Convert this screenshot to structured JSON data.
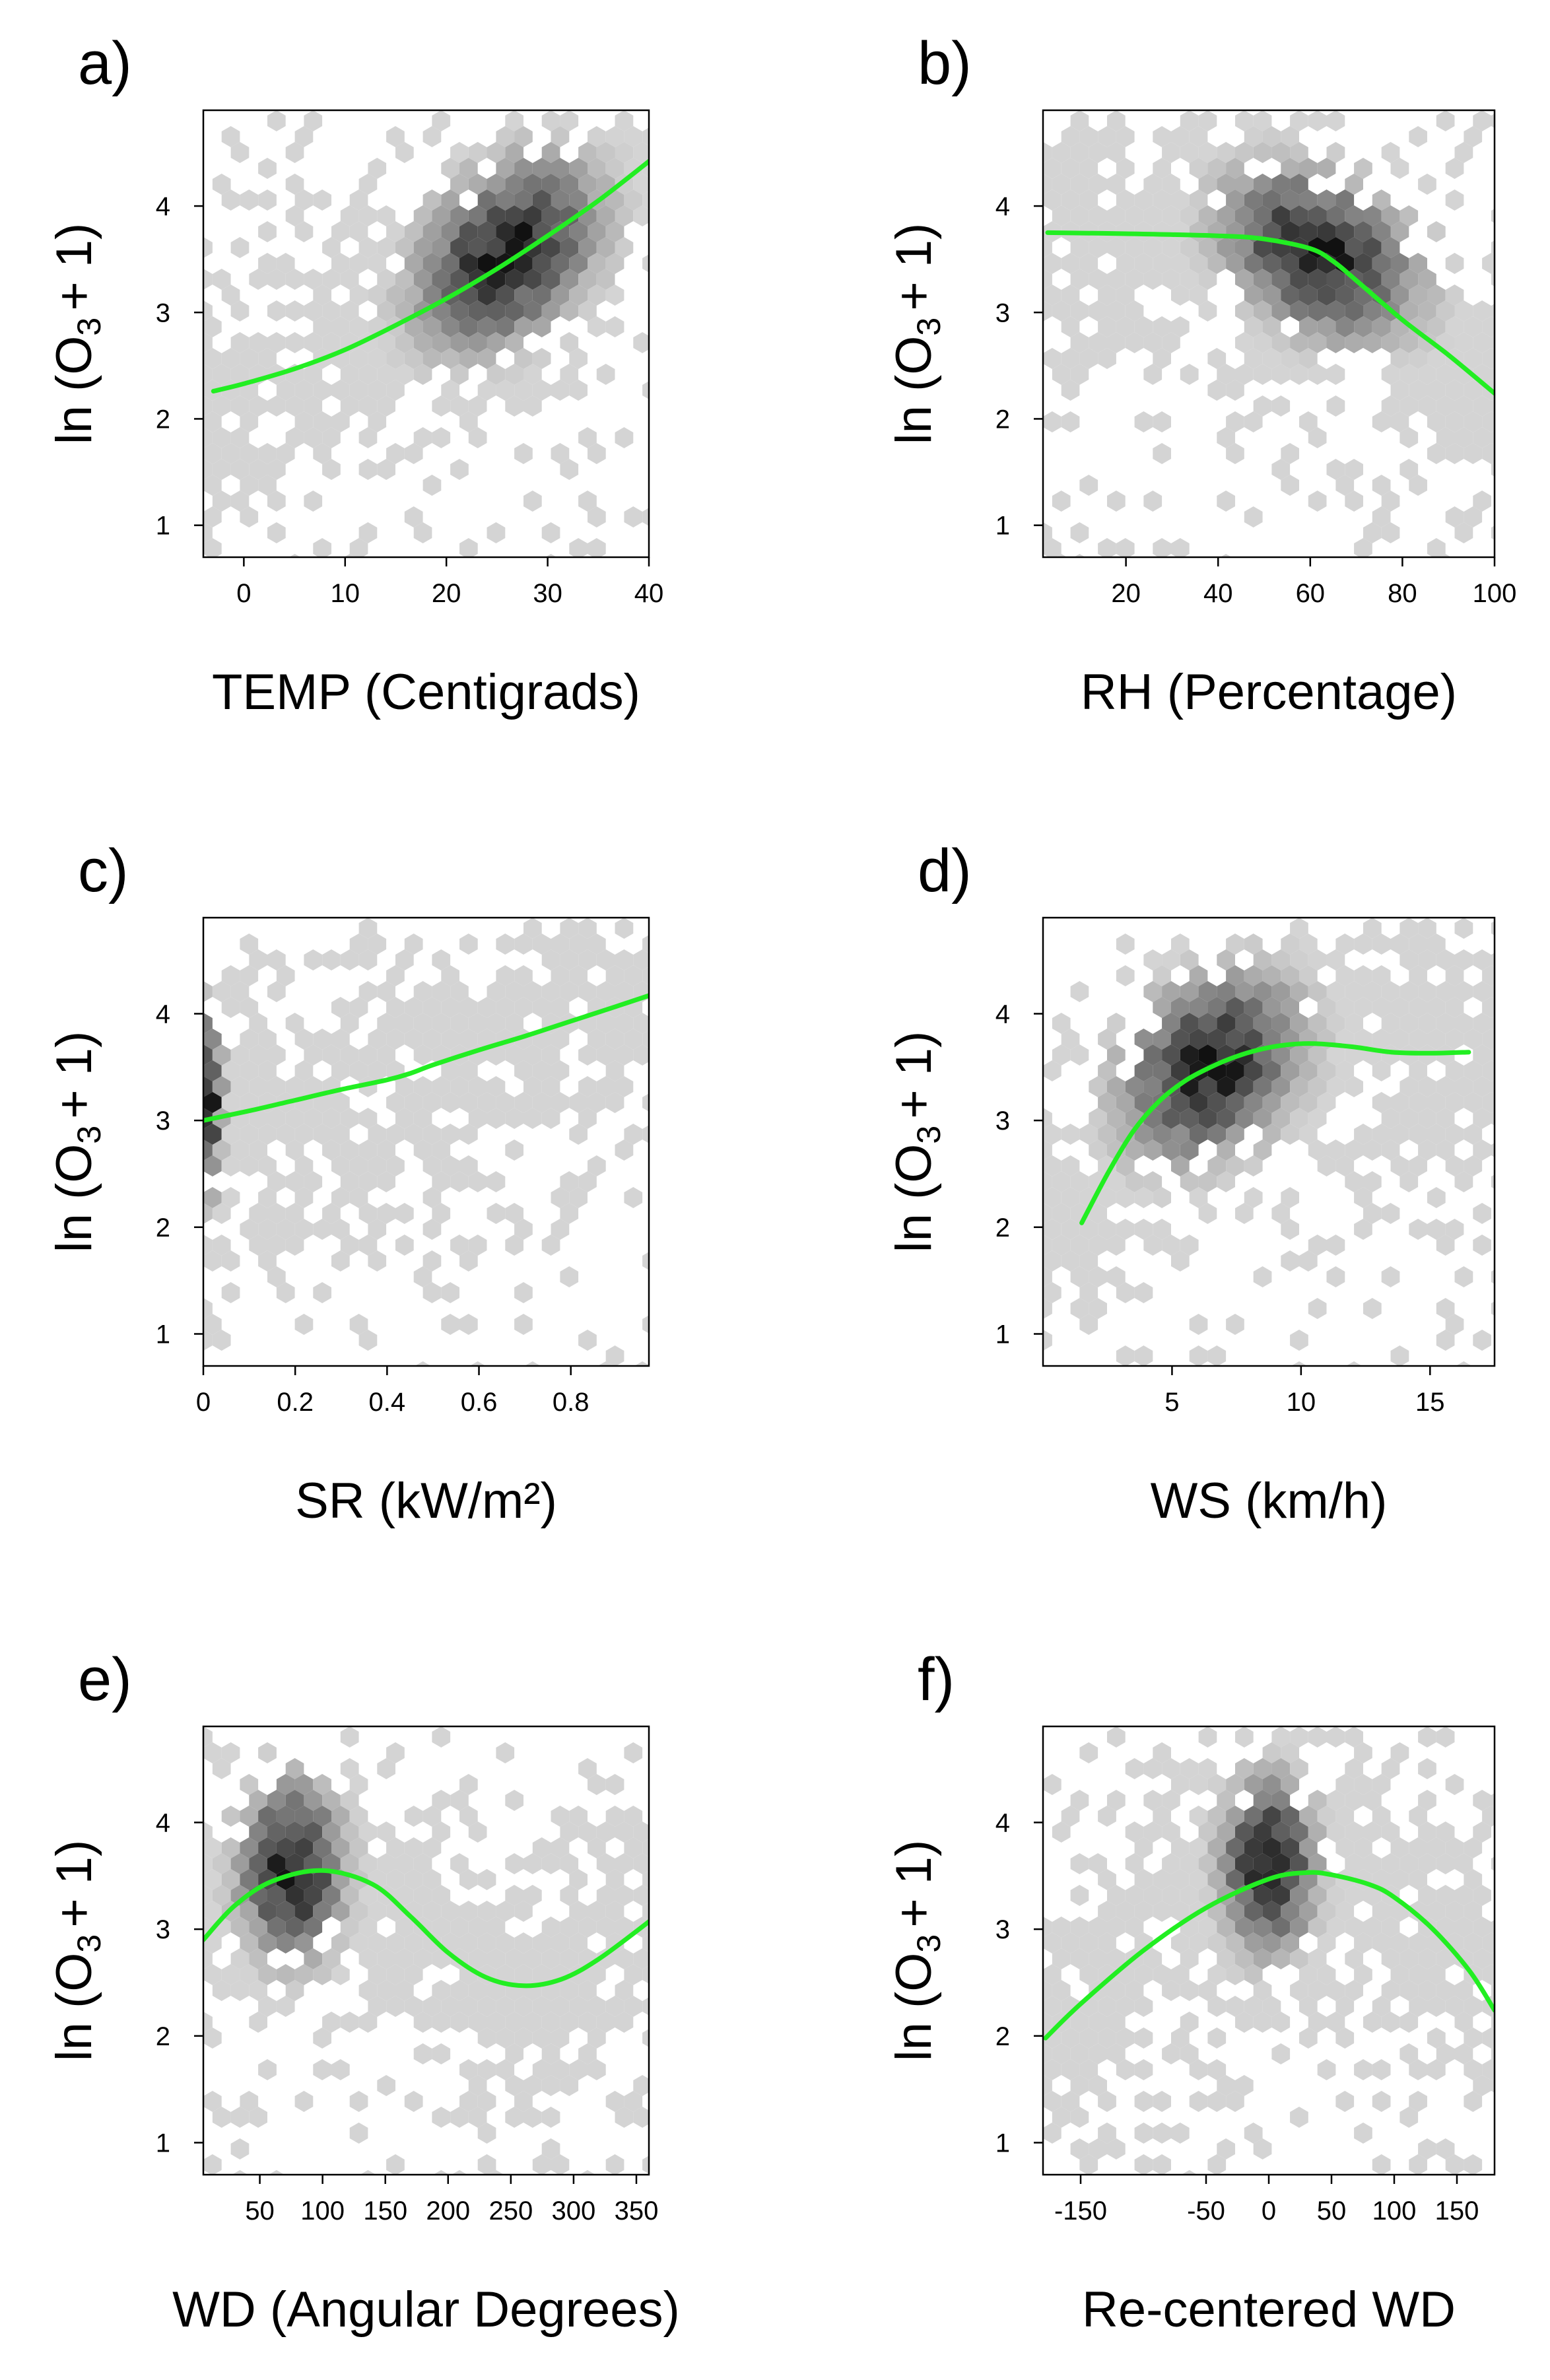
{
  "figure": {
    "ylabel": {
      "prefix": "ln",
      "var": "O",
      "subscript": "3",
      "suffix": "+ 1"
    }
  },
  "colors": {
    "fit_line": "#22ee22",
    "density_low": "#d4d4d4",
    "density_high": "#111111",
    "axis": "#000000",
    "background": "#ffffff"
  },
  "chart_data": [
    {
      "panel": "a)",
      "type": "heatmap",
      "subtype": "hexbin-with-smooth-fit",
      "xlabel": "TEMP (Centigrads)",
      "xlim": [
        -4,
        40
      ],
      "ylim": [
        0.7,
        4.9
      ],
      "xticks": [
        0,
        10,
        20,
        30,
        40
      ],
      "xtick_labels": [
        "0",
        "10",
        "20",
        "30",
        "40"
      ],
      "yticks": [
        1,
        2,
        3,
        4
      ],
      "ytick_labels": [
        "1",
        "2",
        "3",
        "4"
      ],
      "density_cluster": {
        "x_center": 26,
        "y_center": 3.55,
        "x_spread": 6,
        "y_spread": 0.55,
        "tilt": 0.4
      },
      "smooth_fit": {
        "x": [
          -3,
          0,
          5,
          10,
          15,
          20,
          25,
          30,
          35,
          40
        ],
        "y": [
          2.26,
          2.33,
          2.47,
          2.65,
          2.88,
          3.13,
          3.41,
          3.72,
          4.05,
          4.42
        ]
      }
    },
    {
      "panel": "b)",
      "type": "heatmap",
      "subtype": "hexbin-with-smooth-fit",
      "xlabel": "RH (Percentage)",
      "xlim": [
        2,
        100
      ],
      "ylim": [
        0.7,
        4.9
      ],
      "xticks": [
        20,
        40,
        60,
        80,
        100
      ],
      "xtick_labels": [
        "20",
        "40",
        "60",
        "80",
        "100"
      ],
      "yticks": [
        1,
        2,
        3,
        4
      ],
      "ytick_labels": [
        "1",
        "2",
        "3",
        "4"
      ],
      "density_cluster": {
        "x_center": 62,
        "y_center": 3.55,
        "x_spread": 14,
        "y_spread": 0.5,
        "tilt": -0.35
      },
      "smooth_fit": {
        "x": [
          3,
          20,
          40,
          50,
          60,
          65,
          70,
          80,
          90,
          100
        ],
        "y": [
          3.75,
          3.74,
          3.72,
          3.69,
          3.6,
          3.48,
          3.3,
          2.93,
          2.6,
          2.24
        ]
      }
    },
    {
      "panel": "c)",
      "type": "heatmap",
      "subtype": "hexbin-with-smooth-fit",
      "xlabel": "SR (kW/m²)",
      "xlim": [
        0,
        0.97
      ],
      "ylim": [
        0.7,
        4.9
      ],
      "xticks": [
        0,
        0.2,
        0.4,
        0.6,
        0.8
      ],
      "xtick_labels": [
        "0",
        "0.2",
        "0.4",
        "0.6",
        "0.8"
      ],
      "yticks": [
        1,
        2,
        3,
        4
      ],
      "ytick_labels": [
        "1",
        "2",
        "3",
        "4"
      ],
      "density_cluster": {
        "x_center": 0.01,
        "y_center": 3.2,
        "x_spread": 0.02,
        "y_spread": 0.6,
        "tilt": 0
      },
      "smooth_fit": {
        "x": [
          0,
          0.1,
          0.2,
          0.3,
          0.4,
          0.45,
          0.5,
          0.6,
          0.7,
          0.8,
          0.9,
          0.97
        ],
        "y": [
          3.0,
          3.09,
          3.19,
          3.29,
          3.38,
          3.44,
          3.52,
          3.66,
          3.79,
          3.93,
          4.07,
          4.17
        ]
      }
    },
    {
      "panel": "d)",
      "type": "heatmap",
      "subtype": "hexbin-with-smooth-fit",
      "xlabel": "WS (km/h)",
      "xlim": [
        0,
        17.5
      ],
      "ylim": [
        0.7,
        4.9
      ],
      "xticks": [
        5,
        10,
        15
      ],
      "xtick_labels": [
        "5",
        "10",
        "15"
      ],
      "yticks": [
        1,
        2,
        3,
        4
      ],
      "ytick_labels": [
        "1",
        "2",
        "3",
        "4"
      ],
      "density_cluster": {
        "x_center": 6.5,
        "y_center": 3.5,
        "x_spread": 2.3,
        "y_spread": 0.55,
        "tilt": 0.3
      },
      "smooth_fit": {
        "x": [
          1.5,
          2.5,
          3.5,
          4.5,
          5.5,
          6.5,
          7.5,
          8.5,
          9.5,
          10.5,
          12,
          13.5,
          15,
          16.5
        ],
        "y": [
          2.04,
          2.5,
          2.9,
          3.18,
          3.37,
          3.5,
          3.6,
          3.67,
          3.71,
          3.72,
          3.69,
          3.64,
          3.63,
          3.64
        ]
      }
    },
    {
      "panel": "e)",
      "type": "heatmap",
      "subtype": "hexbin-with-smooth-fit",
      "xlabel": "WD (Angular Degrees)",
      "xlim": [
        5,
        360
      ],
      "ylim": [
        0.7,
        4.9
      ],
      "xticks": [
        50,
        100,
        150,
        200,
        250,
        300,
        350
      ],
      "xtick_labels": [
        "50",
        "100",
        "150",
        "200",
        "250",
        "300",
        "350"
      ],
      "yticks": [
        1,
        2,
        3,
        4
      ],
      "ytick_labels": [
        "1",
        "2",
        "3",
        "4"
      ],
      "density_cluster": {
        "x_center": 75,
        "y_center": 3.55,
        "x_spread": 28,
        "y_spread": 0.55,
        "tilt": 0
      },
      "smooth_fit": {
        "x": [
          5,
          30,
          60,
          100,
          140,
          170,
          200,
          230,
          260,
          290,
          320,
          360
        ],
        "y": [
          2.9,
          3.22,
          3.45,
          3.55,
          3.42,
          3.12,
          2.78,
          2.55,
          2.47,
          2.53,
          2.72,
          3.07
        ]
      }
    },
    {
      "panel": "f)",
      "type": "heatmap",
      "subtype": "hexbin-with-smooth-fit",
      "xlabel": "Re-centered WD",
      "xlim": [
        -180,
        180
      ],
      "ylim": [
        0.7,
        4.9
      ],
      "xticks": [
        -150,
        -50,
        0,
        50,
        100,
        150
      ],
      "xtick_labels": [
        "-150",
        "-50",
        "0",
        "50",
        "100",
        "150"
      ],
      "yticks": [
        1,
        2,
        3,
        4
      ],
      "ytick_labels": [
        "1",
        "2",
        "3",
        "4"
      ],
      "density_cluster": {
        "x_center": 0,
        "y_center": 3.6,
        "x_spread": 25,
        "y_spread": 0.55,
        "tilt": 0
      },
      "smooth_fit": {
        "x": [
          -178,
          -150,
          -100,
          -50,
          0,
          30,
          50,
          80,
          100,
          130,
          160,
          180
        ],
        "y": [
          1.98,
          2.3,
          2.8,
          3.2,
          3.47,
          3.53,
          3.51,
          3.42,
          3.3,
          3.01,
          2.61,
          2.24
        ]
      }
    }
  ]
}
